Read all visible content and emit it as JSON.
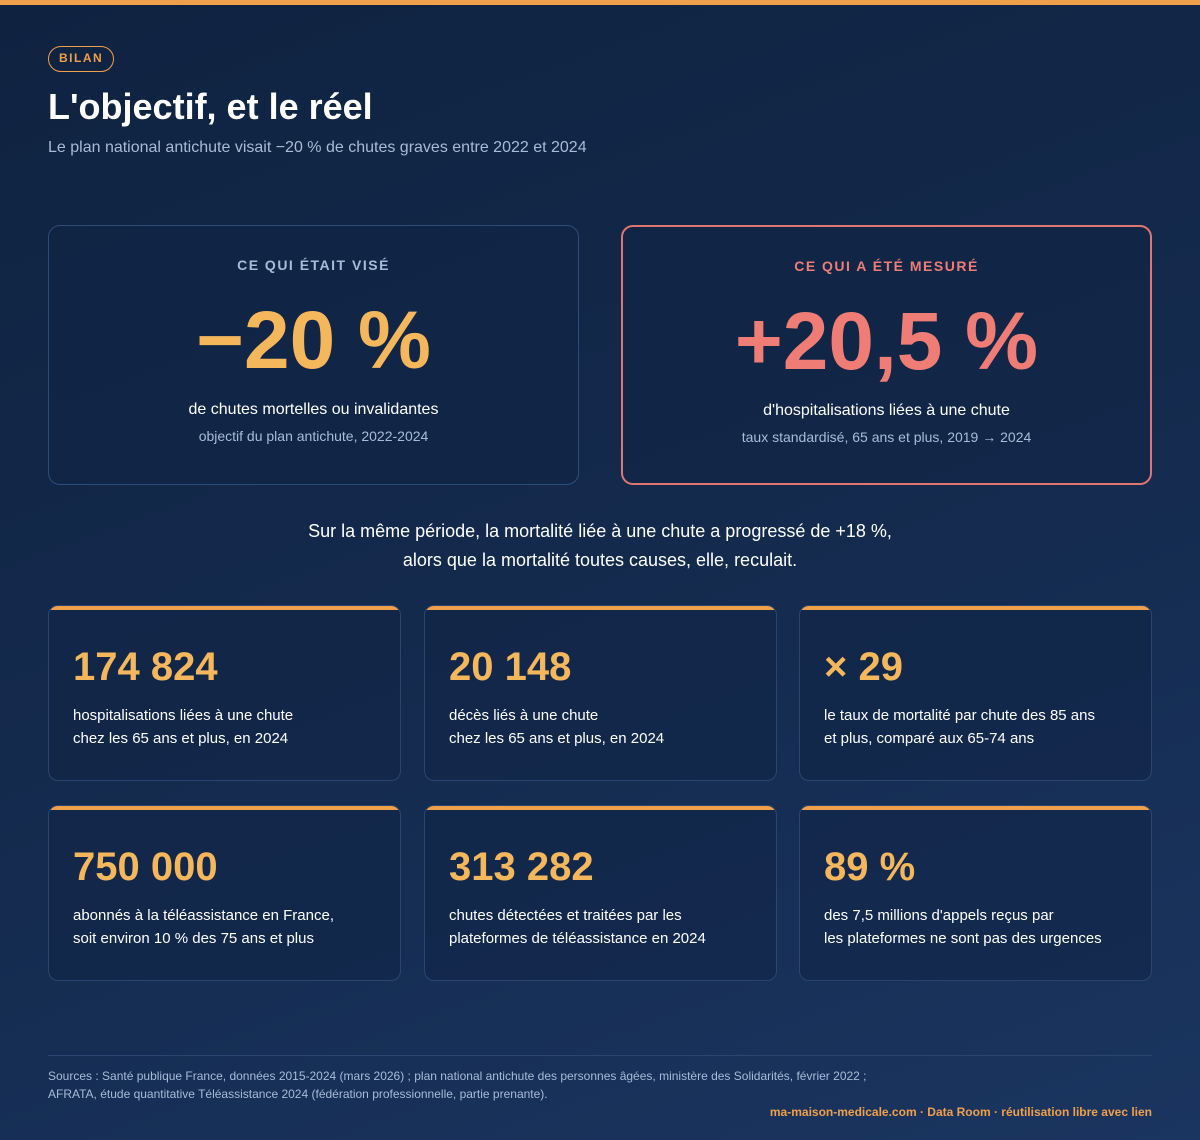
{
  "header": {
    "badge": "BILAN",
    "title": "L'objectif, et le réel",
    "subtitle": "Le plan national antichute visait −20 % de chutes graves entre 2022 et 2024"
  },
  "comparison": {
    "target": {
      "kicker": "CE QUI ÉTAIT VISÉ",
      "value": "−20 %",
      "label": "de chutes mortelles ou invalidantes",
      "note": "objectif du plan antichute, 2022-2024"
    },
    "measured": {
      "kicker": "CE QUI A ÉTÉ MESURÉ",
      "value": "+20,5 %",
      "label": "d'hospitalisations liées à une chute",
      "note": "taux standardisé, 65 ans et plus, 2019 → 2024"
    }
  },
  "statement": {
    "line1": "Sur la même période, la mortalité liée à une chute a progressé de +18 %,",
    "line2": "alors que la mortalité toutes causes, elle, reculait."
  },
  "stats": [
    {
      "value": "174 824",
      "line1": "hospitalisations liées à une chute",
      "line2": "chez les 65 ans et plus, en 2024"
    },
    {
      "value": "20 148",
      "line1": "décès liés à une chute",
      "line2": "chez les 65 ans et plus, en 2024"
    },
    {
      "value": "× 29",
      "line1": "le taux de mortalité par chute des 85 ans",
      "line2": "et plus, comparé aux 65-74 ans"
    },
    {
      "value": "750 000",
      "line1": "abonnés à la téléassistance en France,",
      "line2": "soit environ 10 % des 75 ans et plus"
    },
    {
      "value": "313 282",
      "line1": "chutes détectées et traitées par les",
      "line2": "plateformes de téléassistance en 2024"
    },
    {
      "value": "89 %",
      "line1": "des 7,5 millions d'appels reçus par",
      "line2": "les plateformes ne sont pas des urgences"
    }
  ],
  "footer": {
    "sources_line1": "Sources : Santé publique France, données 2015-2024 (mars 2026) ; plan national antichute des personnes âgées, ministère des Solidarités, février 2022 ;",
    "sources_line2": "AFRATA, étude quantitative Téléassistance 2024 (fédération professionnelle, partie prenante).",
    "credit": "ma-maison-medicale.com · Data Room · réutilisation libre avec lien"
  },
  "colors": {
    "accent": "#f0a04b",
    "value_gold": "#f5b75c",
    "alert_red": "#ef7d76",
    "background": "#142a4d"
  }
}
